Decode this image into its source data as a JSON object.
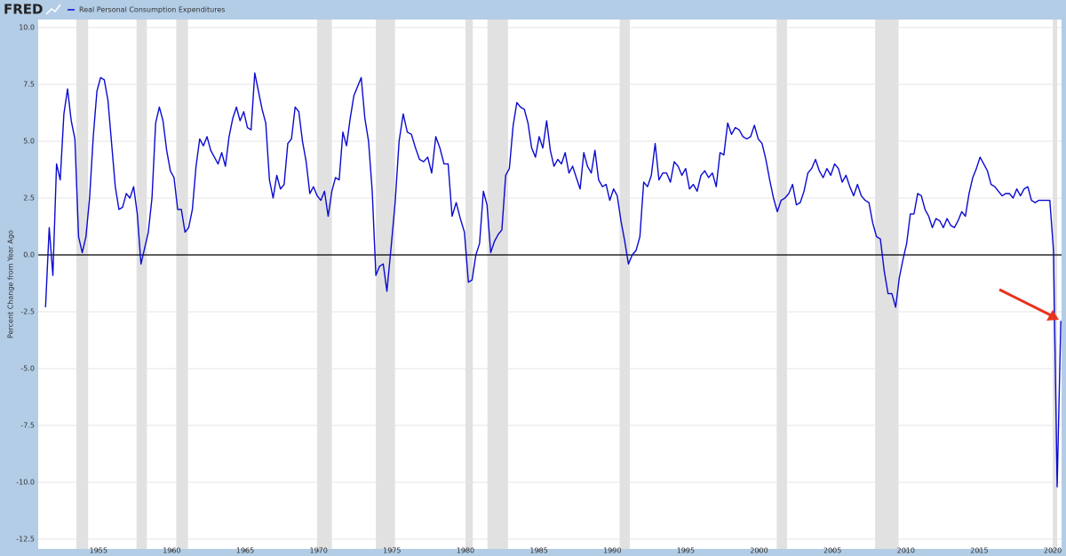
{
  "chart_data": {
    "type": "line",
    "logo": "FRED",
    "ylabel": "Percent Change from Year Ago",
    "series": [
      {
        "name": "Real Personal Consumption Expenditures",
        "color": "#0a0ad0",
        "values": [
          -2.3,
          1.2,
          -0.9,
          4.0,
          3.3,
          6.2,
          7.3,
          5.9,
          5.1,
          0.8,
          0.1,
          0.8,
          2.5,
          5.2,
          7.2,
          7.8,
          7.7,
          6.8,
          4.9,
          3.0,
          2.0,
          2.1,
          2.7,
          2.5,
          3.0,
          1.8,
          -0.4,
          0.3,
          1.0,
          2.5,
          5.8,
          6.5,
          5.9,
          4.6,
          3.7,
          3.4,
          2.0,
          2.0,
          1.0,
          1.2,
          2.0,
          3.9,
          5.1,
          4.8,
          5.2,
          4.6,
          4.3,
          4.0,
          4.5,
          3.9,
          5.2,
          6.0,
          6.5,
          5.9,
          6.3,
          5.6,
          5.5,
          8.0,
          7.2,
          6.4,
          5.8,
          3.3,
          2.5,
          3.5,
          2.9,
          3.1,
          4.9,
          5.1,
          6.5,
          6.3,
          5.0,
          4.1,
          2.7,
          3.0,
          2.6,
          2.4,
          2.8,
          1.7,
          2.8,
          3.4,
          3.3,
          5.4,
          4.8,
          6.0,
          7.0,
          7.4,
          7.8,
          6.0,
          5.0,
          2.8,
          -0.9,
          -0.5,
          -0.4,
          -1.6,
          0.3,
          2.3,
          5.0,
          6.2,
          5.4,
          5.3,
          4.7,
          4.2,
          4.1,
          4.3,
          3.6,
          5.2,
          4.7,
          4.0,
          4.0,
          1.7,
          2.3,
          1.6,
          1.0,
          -1.2,
          -1.1,
          0.0,
          0.5,
          2.8,
          2.2,
          0.1,
          0.6,
          0.9,
          1.1,
          3.5,
          3.8,
          5.7,
          6.7,
          6.5,
          6.4,
          5.8,
          4.7,
          4.3,
          5.2,
          4.7,
          5.9,
          4.6,
          3.9,
          4.2,
          4.0,
          4.5,
          3.6,
          3.9,
          3.4,
          2.9,
          4.5,
          3.9,
          3.6,
          4.6,
          3.3,
          3.0,
          3.1,
          2.4,
          2.9,
          2.6,
          1.5,
          0.6,
          -0.4,
          0.0,
          0.2,
          0.8,
          3.2,
          3.0,
          3.5,
          4.9,
          3.3,
          3.6,
          3.6,
          3.2,
          4.1,
          3.9,
          3.5,
          3.8,
          2.9,
          3.1,
          2.8,
          3.5,
          3.7,
          3.4,
          3.6,
          3.0,
          4.5,
          4.4,
          5.8,
          5.3,
          5.6,
          5.5,
          5.2,
          5.1,
          5.2,
          5.7,
          5.1,
          4.9,
          4.2,
          3.3,
          2.5,
          1.9,
          2.4,
          2.5,
          2.7,
          3.1,
          2.2,
          2.3,
          2.8,
          3.6,
          3.8,
          4.2,
          3.7,
          3.4,
          3.8,
          3.5,
          4.0,
          3.8,
          3.2,
          3.5,
          3.0,
          2.6,
          3.1,
          2.6,
          2.4,
          2.3,
          1.4,
          0.8,
          0.7,
          -0.7,
          -1.7,
          -1.7,
          -2.3,
          -1.0,
          -0.2,
          0.5,
          1.8,
          1.8,
          2.7,
          2.6,
          2.0,
          1.7,
          1.2,
          1.6,
          1.5,
          1.2,
          1.6,
          1.3,
          1.2,
          1.5,
          1.9,
          1.7,
          2.7,
          3.4,
          3.8,
          4.3,
          4.0,
          3.7,
          3.1,
          3.0,
          2.8,
          2.6,
          2.7,
          2.7,
          2.5,
          2.9,
          2.6,
          2.9,
          3.0,
          2.4,
          2.3,
          2.4,
          2.4,
          2.4,
          2.4,
          0.2,
          -10.2,
          -2.9
        ]
      }
    ],
    "x": [
      1951.4,
      1951.65,
      1951.9,
      1952.15,
      1952.4,
      1952.65,
      1952.9,
      1953.15,
      1953.4,
      1953.65,
      1953.9,
      1954.15,
      1954.4,
      1954.65,
      1954.9,
      1955.15,
      1955.4,
      1955.65,
      1955.9,
      1956.15,
      1956.4,
      1956.65,
      1956.9,
      1957.15,
      1957.4,
      1957.65,
      1957.9,
      1958.15,
      1958.4,
      1958.65,
      1958.9,
      1959.15,
      1959.4,
      1959.65,
      1959.9,
      1960.15,
      1960.4,
      1960.65,
      1960.9,
      1961.15,
      1961.4,
      1961.65,
      1961.9,
      1962.15,
      1962.4,
      1962.65,
      1962.9,
      1963.15,
      1963.4,
      1963.65,
      1963.9,
      1964.15,
      1964.4,
      1964.65,
      1964.9,
      1965.15,
      1965.4,
      1965.65,
      1965.9,
      1966.15,
      1966.4,
      1966.65,
      1966.9,
      1967.15,
      1967.4,
      1967.65,
      1967.9,
      1968.15,
      1968.4,
      1968.65,
      1968.9,
      1969.15,
      1969.4,
      1969.65,
      1969.9,
      1970.15,
      1970.4,
      1970.65,
      1970.9,
      1971.15,
      1971.4,
      1971.65,
      1971.9,
      1972.15,
      1972.4,
      1972.65,
      1972.9,
      1973.15,
      1973.4,
      1973.65,
      1973.9,
      1974.15,
      1974.4,
      1974.65,
      1974.93,
      1975.21,
      1975.48,
      1975.76,
      1976.04,
      1976.32,
      1976.6,
      1976.87,
      1977.15,
      1977.43,
      1977.7,
      1977.98,
      1978.26,
      1978.54,
      1978.82,
      1979.09,
      1979.37,
      1979.65,
      1979.93,
      1980.2,
      1980.45,
      1980.71,
      1980.96,
      1981.22,
      1981.47,
      1981.72,
      1981.98,
      1982.23,
      1982.48,
      1982.74,
      1982.99,
      1983.25,
      1983.5,
      1983.75,
      1984.01,
      1984.26,
      1984.51,
      1984.77,
      1985.02,
      1985.27,
      1985.53,
      1985.78,
      1986.03,
      1986.29,
      1986.54,
      1986.79,
      1987.05,
      1987.3,
      1987.55,
      1987.81,
      1988.06,
      1988.31,
      1988.57,
      1988.82,
      1989.07,
      1989.33,
      1989.58,
      1989.83,
      1990.09,
      1990.34,
      1990.59,
      1990.85,
      1991.1,
      1991.36,
      1991.62,
      1991.88,
      1992.14,
      1992.4,
      1992.66,
      1992.92,
      1993.18,
      1993.44,
      1993.7,
      1993.96,
      1994.22,
      1994.48,
      1994.74,
      1995.0,
      1995.26,
      1995.52,
      1995.78,
      1996.04,
      1996.3,
      1996.56,
      1996.82,
      1997.08,
      1997.34,
      1997.6,
      1997.86,
      1998.12,
      1998.38,
      1998.64,
      1998.9,
      1999.16,
      1999.42,
      1999.68,
      1999.94,
      2000.2,
      2000.46,
      2000.72,
      2000.98,
      2001.24,
      2001.5,
      2001.76,
      2002.02,
      2002.28,
      2002.54,
      2002.8,
      2003.06,
      2003.32,
      2003.58,
      2003.84,
      2004.1,
      2004.36,
      2004.62,
      2004.88,
      2005.14,
      2005.4,
      2005.66,
      2005.92,
      2006.18,
      2006.44,
      2006.7,
      2006.96,
      2007.22,
      2007.48,
      2007.74,
      2008.0,
      2008.26,
      2008.52,
      2008.78,
      2009.04,
      2009.3,
      2009.55,
      2009.8,
      2010.05,
      2010.3,
      2010.55,
      2010.8,
      2011.05,
      2011.3,
      2011.55,
      2011.8,
      2012.05,
      2012.3,
      2012.55,
      2012.8,
      2013.05,
      2013.3,
      2013.55,
      2013.8,
      2014.05,
      2014.3,
      2014.55,
      2014.8,
      2015.05,
      2015.3,
      2015.55,
      2015.8,
      2016.05,
      2016.3,
      2016.55,
      2016.8,
      2017.05,
      2017.3,
      2017.55,
      2017.8,
      2018.05,
      2018.3,
      2018.55,
      2018.8,
      2019.05,
      2019.3,
      2019.55,
      2019.8,
      2020.05,
      2020.3,
      2020.55
    ],
    "recessions": [
      [
        1953.5,
        1954.3
      ],
      [
        1957.6,
        1958.3
      ],
      [
        1960.3,
        1961.1
      ],
      [
        1969.9,
        1970.9
      ],
      [
        1973.9,
        1975.2
      ],
      [
        1980.0,
        1980.5
      ],
      [
        1981.5,
        1982.9
      ],
      [
        1990.5,
        1991.2
      ],
      [
        2001.2,
        2001.9
      ],
      [
        2007.9,
        2009.5
      ],
      [
        2020.0,
        2020.3
      ]
    ],
    "xlim": [
      1950.9,
      2020.6
    ],
    "xticks": [
      1955,
      1960,
      1965,
      1970,
      1975,
      1980,
      1985,
      1990,
      1995,
      2000,
      2005,
      2010,
      2015,
      2020
    ],
    "ylim": [
      -12.5,
      10
    ],
    "yticks": [
      -12.5,
      {
        "value": -10,
        "label": "-10.0"
      },
      -7.5,
      {
        "value": -5,
        "label": "-5.0"
      },
      -2.5,
      {
        "value": 0,
        "label": "0.0"
      },
      2.5,
      {
        "value": 5,
        "label": "5.0"
      },
      7.5,
      {
        "value": 10,
        "label": "10.0"
      }
    ],
    "grid": true
  }
}
